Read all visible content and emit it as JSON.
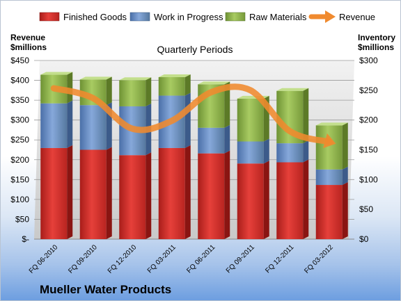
{
  "chart_data": {
    "type": "bar",
    "stacked": true,
    "subtitle": "Quarterly Periods",
    "company": "Mueller Water Products",
    "left_axis": {
      "title_line1": "Revenue",
      "title_line2": "$millions",
      "ticks": [
        "$-",
        "$50",
        "$100",
        "$150",
        "$200",
        "$250",
        "$300",
        "$350",
        "$400",
        "$450"
      ],
      "range": [
        0,
        450
      ]
    },
    "right_axis": {
      "title_line1": "Inventory",
      "title_line2": "$millions",
      "ticks": [
        "$0",
        "$50",
        "$100",
        "$150",
        "$200",
        "$250",
        "$300"
      ],
      "range": [
        0,
        300
      ]
    },
    "categories": [
      "FQ 06-2010",
      "FQ 09-2010",
      "FQ 12-2010",
      "FQ 03-2011",
      "FQ 06-2011",
      "FQ 09-2011",
      "FQ 12-2011",
      "FQ 03-2012"
    ],
    "series": [
      {
        "name": "Finished Goods",
        "axis": "right",
        "color": "#e1342f",
        "values": [
          153,
          150,
          141,
          153,
          144,
          127,
          129,
          91
        ]
      },
      {
        "name": "Work in Progress",
        "axis": "right",
        "color": "#6f92c7",
        "values": [
          75,
          75,
          82,
          88,
          43,
          37,
          32,
          26
        ]
      },
      {
        "name": "Raw Materials",
        "axis": "right",
        "color": "#94b84e",
        "values": [
          48,
          43,
          44,
          31,
          73,
          72,
          88,
          74
        ]
      },
      {
        "name": "Revenue",
        "axis": "left",
        "type": "line",
        "color": "#f08a2e",
        "values": [
          380,
          355,
          278,
          298,
          370,
          375,
          272,
          245
        ]
      }
    ],
    "grid": true,
    "legend_position": "top"
  }
}
